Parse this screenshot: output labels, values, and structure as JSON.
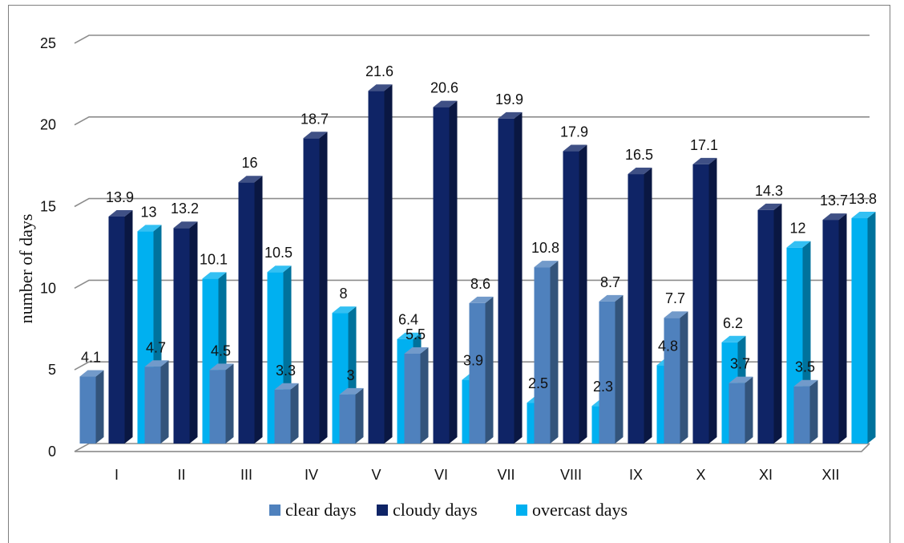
{
  "chart_data": {
    "type": "bar",
    "three_d": true,
    "categories": [
      "I",
      "II",
      "III",
      "IV",
      "V",
      "VI",
      "VII",
      "VIII",
      "IX",
      "X",
      "XI",
      "XII"
    ],
    "series": [
      {
        "name": "clear days",
        "color": "#4f81bd",
        "values": [
          4.1,
          4.7,
          4.5,
          3.3,
          3,
          5.5,
          8.6,
          10.8,
          8.7,
          7.7,
          3.7,
          3.5
        ]
      },
      {
        "name": "cloudy days",
        "color": "#0f2466",
        "values": [
          13.9,
          13.2,
          16,
          18.7,
          21.6,
          20.6,
          19.9,
          17.9,
          16.5,
          17.1,
          14.3,
          13.7
        ]
      },
      {
        "name": "overcast days",
        "color": "#00b0f0",
        "values": [
          13,
          10.1,
          10.5,
          8,
          6.4,
          3.9,
          2.5,
          2.3,
          4.8,
          6.2,
          12,
          13.8
        ]
      }
    ],
    "y_ticks": [
      "0",
      "5",
      "10",
      "15",
      "20",
      "25"
    ],
    "ylim": [
      0,
      25
    ],
    "ylabel": "number of days",
    "xlabel": "",
    "title": "",
    "grid": true,
    "legend_position": "bottom"
  }
}
